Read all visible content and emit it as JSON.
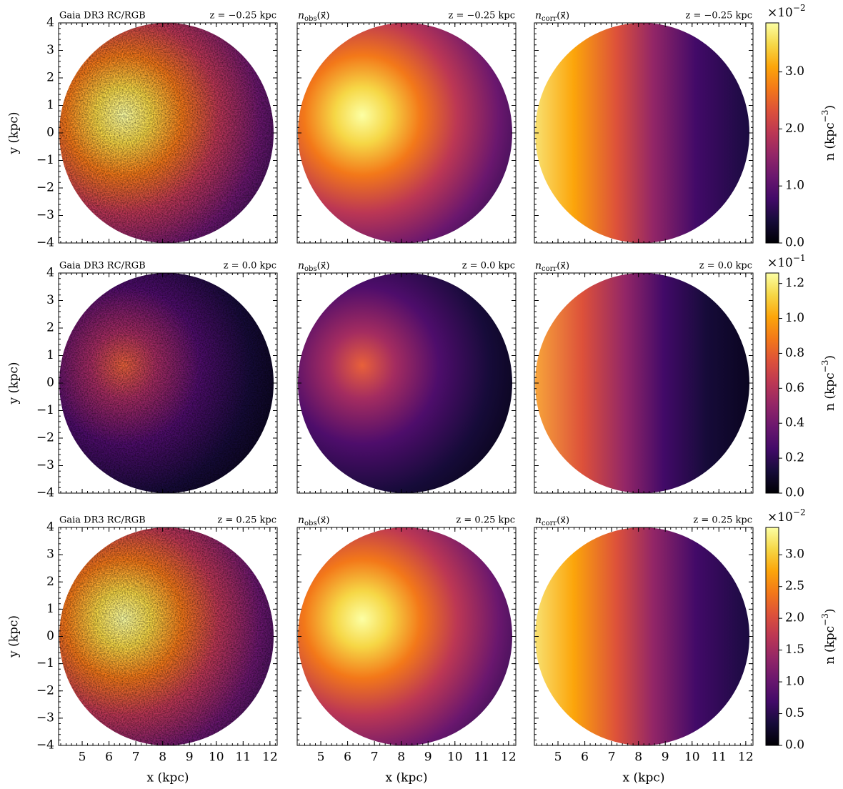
{
  "chart_data": [
    {
      "type": "heatmap",
      "title_left": "Gaia DR3 RC/RGB",
      "title_right": "z = −0.25 kpc",
      "ylabel": "y (kpc)",
      "xlim": [
        4.12,
        12.27
      ],
      "xticks": [
        5,
        6,
        7,
        8,
        9,
        10,
        11,
        12
      ],
      "ylim": [
        -4,
        4
      ],
      "yticks": [
        {
          "value": -4,
          "label": "−4"
        },
        {
          "value": -3,
          "label": "−3"
        },
        {
          "value": -2,
          "label": "−2"
        },
        {
          "value": -1,
          "label": "−1"
        },
        0,
        1,
        2,
        3,
        4
      ]
    },
    {
      "type": "heatmap",
      "title_left": {
        "symbol": "n",
        "subscript": "obs",
        "argument": "(x⃗)"
      },
      "title_right": "z = −0.25 kpc",
      "xlim": [
        4.12,
        12.27
      ],
      "xticks": [
        5,
        6,
        7,
        8,
        9,
        10,
        11,
        12
      ],
      "ylim": [
        -4,
        4
      ],
      "yticks": [
        {
          "value": -4,
          "label": "−4"
        },
        {
          "value": -3,
          "label": "−3"
        },
        {
          "value": -2,
          "label": "−2"
        },
        {
          "value": -1,
          "label": "−1"
        },
        0,
        1,
        2,
        3,
        4
      ]
    },
    {
      "type": "heatmap",
      "title_left": {
        "symbol": "n",
        "subscript": "corr",
        "argument": "(x⃗)"
      },
      "title_right": "z = −0.25 kpc",
      "xlim": [
        4.12,
        12.27
      ],
      "xticks": [
        5,
        6,
        7,
        8,
        9,
        10,
        11,
        12
      ],
      "ylim": [
        -4,
        4
      ],
      "yticks": [
        {
          "value": -4,
          "label": "−4"
        },
        {
          "value": -3,
          "label": "−3"
        },
        {
          "value": -2,
          "label": "−2"
        },
        {
          "value": -1,
          "label": "−1"
        },
        0,
        1,
        2,
        3,
        4
      ]
    },
    {
      "type": "heatmap",
      "title_left": "Gaia DR3 RC/RGB",
      "title_right": "z = 0.0 kpc",
      "ylabel": "y (kpc)",
      "xlim": [
        4.12,
        12.27
      ],
      "xticks": [
        5,
        6,
        7,
        8,
        9,
        10,
        11,
        12
      ],
      "ylim": [
        -4,
        4
      ],
      "yticks": [
        {
          "value": -4,
          "label": "−4"
        },
        {
          "value": -3,
          "label": "−3"
        },
        {
          "value": -2,
          "label": "−2"
        },
        {
          "value": -1,
          "label": "−1"
        },
        0,
        1,
        2,
        3,
        4
      ]
    },
    {
      "type": "heatmap",
      "title_left": {
        "symbol": "n",
        "subscript": "obs",
        "argument": "(x⃗)"
      },
      "title_right": "z = 0.0 kpc",
      "xlim": [
        4.12,
        12.27
      ],
      "xticks": [
        5,
        6,
        7,
        8,
        9,
        10,
        11,
        12
      ],
      "ylim": [
        -4,
        4
      ],
      "yticks": [
        {
          "value": -4,
          "label": "−4"
        },
        {
          "value": -3,
          "label": "−3"
        },
        {
          "value": -2,
          "label": "−2"
        },
        {
          "value": -1,
          "label": "−1"
        },
        0,
        1,
        2,
        3,
        4
      ]
    },
    {
      "type": "heatmap",
      "title_left": {
        "symbol": "n",
        "subscript": "corr",
        "argument": "(x⃗)"
      },
      "title_right": "z = 0.0 kpc",
      "xlim": [
        4.12,
        12.27
      ],
      "xticks": [
        5,
        6,
        7,
        8,
        9,
        10,
        11,
        12
      ],
      "ylim": [
        -4,
        4
      ],
      "yticks": [
        {
          "value": -4,
          "label": "−4"
        },
        {
          "value": -3,
          "label": "−3"
        },
        {
          "value": -2,
          "label": "−2"
        },
        {
          "value": -1,
          "label": "−1"
        },
        0,
        1,
        2,
        3,
        4
      ]
    },
    {
      "type": "heatmap",
      "title_left": "Gaia DR3 RC/RGB",
      "title_right": "z = 0.25 kpc",
      "ylabel": "y (kpc)",
      "xlabel": "x (kpc)",
      "xlim": [
        4.12,
        12.27
      ],
      "xticks": [
        5,
        6,
        7,
        8,
        9,
        10,
        11,
        12
      ],
      "ylim": [
        -4,
        4
      ],
      "yticks": [
        {
          "value": -4,
          "label": "−4"
        },
        {
          "value": -3,
          "label": "−3"
        },
        {
          "value": -2,
          "label": "−2"
        },
        {
          "value": -1,
          "label": "−1"
        },
        0,
        1,
        2,
        3,
        4
      ]
    },
    {
      "type": "heatmap",
      "title_left": {
        "symbol": "n",
        "subscript": "obs",
        "argument": "(x⃗)"
      },
      "title_right": "z = 0.25 kpc",
      "xlabel": "x (kpc)",
      "xlim": [
        4.12,
        12.27
      ],
      "xticks": [
        5,
        6,
        7,
        8,
        9,
        10,
        11,
        12
      ],
      "ylim": [
        -4,
        4
      ],
      "yticks": [
        {
          "value": -4,
          "label": "−4"
        },
        {
          "value": -3,
          "label": "−3"
        },
        {
          "value": -2,
          "label": "−2"
        },
        {
          "value": -1,
          "label": "−1"
        },
        0,
        1,
        2,
        3,
        4
      ]
    },
    {
      "type": "heatmap",
      "title_left": {
        "symbol": "n",
        "subscript": "corr",
        "argument": "(x⃗)"
      },
      "title_right": "z = 0.25 kpc",
      "xlabel": "x (kpc)",
      "xlim": [
        4.12,
        12.27
      ],
      "xticks": [
        5,
        6,
        7,
        8,
        9,
        10,
        11,
        12
      ],
      "ylim": [
        -4,
        4
      ],
      "yticks": [
        {
          "value": -4,
          "label": "−4"
        },
        {
          "value": -3,
          "label": "−3"
        },
        {
          "value": -2,
          "label": "−2"
        },
        {
          "value": -1,
          "label": "−1"
        },
        0,
        1,
        2,
        3,
        4
      ]
    },
    {
      "type": "colorbar",
      "label": {
        "text": "n (kpc",
        "sup": "−3",
        "close": ")"
      },
      "multiplier": {
        "text": "×10",
        "sup": "−2"
      },
      "ylim": [
        0,
        3.86
      ],
      "yticks": [
        {
          "value": 0,
          "label": "0.0"
        },
        {
          "value": 1,
          "label": "1.0"
        },
        {
          "value": 2,
          "label": "2.0"
        },
        {
          "value": 3,
          "label": "3.0"
        }
      ]
    },
    {
      "type": "colorbar",
      "label": {
        "text": "n (kpc",
        "sup": "−3",
        "close": ")"
      },
      "multiplier": {
        "text": "×10",
        "sup": "−1"
      },
      "ylim": [
        0,
        1.26
      ],
      "yticks": [
        {
          "value": 0,
          "label": "0.0"
        },
        0.2,
        0.4,
        0.6,
        0.8,
        {
          "value": 1,
          "label": "1.0"
        },
        1.2
      ]
    },
    {
      "type": "colorbar",
      "label": {
        "text": "n (kpc",
        "sup": "−3",
        "close": ")"
      },
      "multiplier": {
        "text": "×10",
        "sup": "−2"
      },
      "ylim": [
        0,
        3.43
      ],
      "yticks": [
        {
          "value": 0,
          "label": "0.0"
        },
        0.5,
        {
          "value": 1,
          "label": "1.0"
        },
        1.5,
        {
          "value": 2,
          "label": "2.0"
        },
        2.5,
        {
          "value": 3,
          "label": "3.0"
        }
      ]
    }
  ]
}
